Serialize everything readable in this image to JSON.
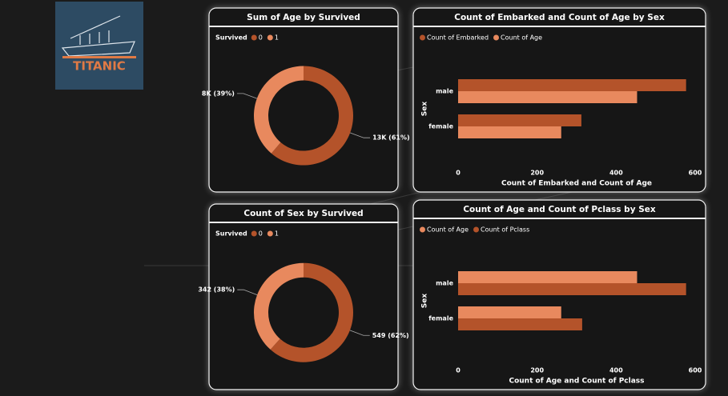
{
  "logo": {
    "text": "TITANIC"
  },
  "chart_data": [
    {
      "type": "donut",
      "title": "Sum of Age by Survived",
      "legend_title": "Survived",
      "categories": [
        "0",
        "1"
      ],
      "colors": [
        "#b4532a",
        "#e8895e"
      ],
      "values": [
        12985,
        8220
      ],
      "value_labels": [
        "13K (61%)",
        "8K (39%)"
      ]
    },
    {
      "type": "hbar",
      "title": "Count of Embarked and Count of Age by Sex",
      "categories": [
        "male",
        "female"
      ],
      "y_label": "Sex",
      "x_label": "Count of Embarked and Count of Age",
      "series": [
        {
          "name": "Count of Embarked",
          "color": "#b4532a",
          "values": [
            577,
            312
          ]
        },
        {
          "name": "Count of Age",
          "color": "#e8895e",
          "values": [
            453,
            261
          ]
        }
      ],
      "xlim": [
        0,
        600
      ],
      "xticks": [
        0,
        200,
        400,
        600
      ]
    },
    {
      "type": "donut",
      "title": "Count of Sex by Survived",
      "legend_title": "Survived",
      "categories": [
        "0",
        "1"
      ],
      "colors": [
        "#b4532a",
        "#e8895e"
      ],
      "values": [
        549,
        342
      ],
      "value_labels": [
        "549 (62%)",
        "342 (38%)"
      ]
    },
    {
      "type": "hbar",
      "title": "Count of Age and Count of Pclass by Sex",
      "categories": [
        "male",
        "female"
      ],
      "y_label": "Sex",
      "x_label": "Count of Age and Count of Pclass",
      "series": [
        {
          "name": "Count of Age",
          "color": "#e8895e",
          "values": [
            453,
            261
          ]
        },
        {
          "name": "Count of Pclass",
          "color": "#b4532a",
          "values": [
            577,
            314
          ]
        }
      ],
      "xlim": [
        0,
        600
      ],
      "xticks": [
        0,
        200,
        400,
        600
      ]
    }
  ]
}
